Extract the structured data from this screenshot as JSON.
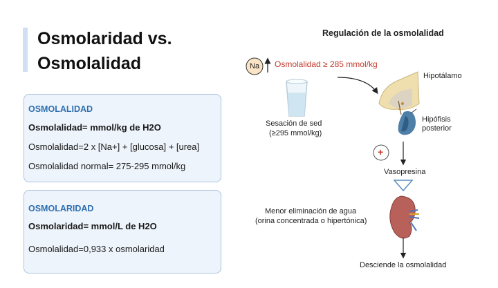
{
  "title": {
    "line1": "Osmolaridad vs.",
    "line2": "Osmolalidad"
  },
  "card_osmolalidad": {
    "heading": "OSMOLALIDAD",
    "definition": "Osmolalidad= mmol/kg de H2O",
    "formula": "Osmolalidad=2 x [Na+] + [glucosa] + [urea]",
    "normal": "Osmolalidad normal= 275-295 mmol/kg"
  },
  "card_osmolaridad": {
    "heading": "OSMOLARIDAD",
    "definition": "Osmolaridad= mmol/L de H2O",
    "relation": "Osmolalidad=0,933 x osmolaridad"
  },
  "diagram": {
    "title": "Regulación de la osmolalidad",
    "na_symbol": "Na",
    "trigger": "Osmolalidad ≥ 285 mmol/kg",
    "hipotalamo": "Hipotálamo",
    "hipofisis_line1": "Hipófisis",
    "hipofisis_line2": "posterior",
    "sed_line1": "Sesación de sed",
    "sed_line2": "(≥295 mmol/kg)",
    "plus": "+",
    "vasopresina": "Vasopresina",
    "agua_line1": "Menor eliminación de agua",
    "agua_line2": "(orina concentrada o hipertónica)",
    "result": "Desciende la osmolalidad"
  },
  "colors": {
    "accent_bar": "#cfe0f2",
    "card_bg": "#eef4fb",
    "card_border": "#aac3de",
    "heading_blue": "#2f6fb0",
    "trigger_red": "#c0392b"
  }
}
